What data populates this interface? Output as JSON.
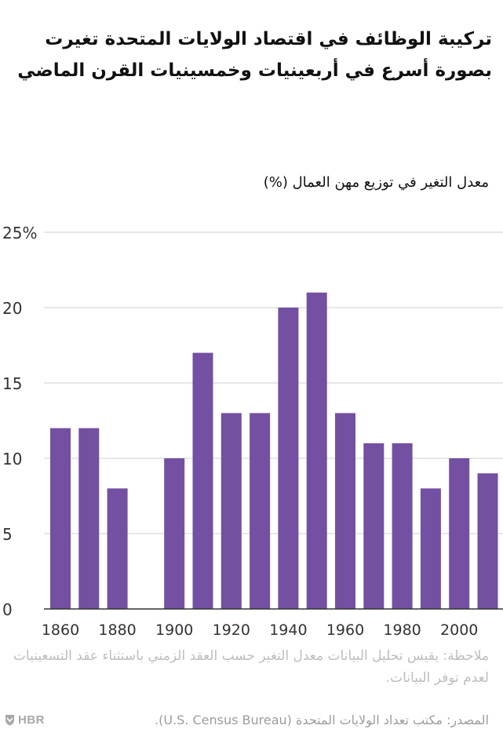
{
  "title": "تركيبة الوظائف في اقتصاد الولايات المتحدة تغيرت بصورة أسرع في أربعينيات وخمسينيات القرن الماضي",
  "note": "ملاحظة: يقيس تحليل البيانات معدل التغير حسب العقد الزمني باستثناء عقد التسعينيات لعدم توفر البيانات.",
  "source": "المصدر: مكتب تعداد الولايات المتحدة (U.S. Census Bureau).",
  "logo_text": "HBR",
  "chart_data": {
    "type": "bar",
    "title": "تركيبة الوظائف في اقتصاد الولايات المتحدة تغيرت بصورة أسرع في أربعينيات وخمسينيات القرن الماضي",
    "ylabel": "معدل التغير في توزيع مهن العمال (%)",
    "xlabel": "",
    "categories": [
      1860,
      1870,
      1880,
      1890,
      1900,
      1910,
      1920,
      1930,
      1940,
      1950,
      1960,
      1970,
      1980,
      1990,
      2000,
      2010
    ],
    "values": [
      12,
      12,
      8,
      null,
      10,
      17,
      13,
      13,
      20,
      21,
      13,
      11,
      11,
      8,
      10,
      9
    ],
    "ylim": [
      0,
      25
    ],
    "yticks": [
      0,
      5,
      10,
      15,
      20,
      25
    ],
    "ytick_labels": [
      "0",
      "5",
      "10",
      "15",
      "20",
      "25%"
    ],
    "xticks": [
      1860,
      1880,
      1900,
      1920,
      1940,
      1960,
      1980,
      2000
    ],
    "xtick_labels": [
      "1860",
      "1880",
      "1900",
      "1920",
      "1940",
      "1960",
      "1980",
      "2000"
    ],
    "grid": true,
    "bar_color": "#7350a1",
    "grid_color": "#cfcfcf",
    "axis_color": "#333333",
    "tick_label_color": "#333333"
  }
}
